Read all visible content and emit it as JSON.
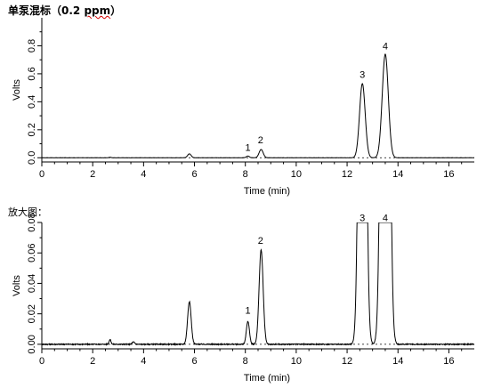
{
  "texts": {
    "top_heading_main": "单泵混标（0.2 ",
    "top_heading_unit": "ppm",
    "top_heading_close": "）",
    "bottom_heading": "放大图："
  },
  "chart_data": [
    {
      "type": "line",
      "xlabel": "Time (min)",
      "ylabel": "Volts",
      "xlim": [
        0,
        17
      ],
      "ylim": [
        -0.03,
        1.0
      ],
      "xticks": [
        0,
        2,
        4,
        6,
        8,
        10,
        12,
        14,
        16
      ],
      "yticks": [
        0.0,
        0.2,
        0.4,
        0.6,
        0.8
      ],
      "yticklabels": [
        "0.0",
        "0.2",
        "0.4",
        "0.6",
        "0.8"
      ],
      "baseline": 0.0,
      "noise": 0.001,
      "series": [
        {
          "values_description_free": true,
          "peaks": [
            {
              "x": 2.68,
              "y": 0.004,
              "w": 0.04
            },
            {
              "x": 5.8,
              "y": 0.028,
              "w": 0.07
            },
            {
              "x": 8.1,
              "y": 0.012,
              "w": 0.06
            },
            {
              "x": 8.62,
              "y": 0.059,
              "w": 0.08
            },
            {
              "x": 12.6,
              "y": 0.53,
              "w": 0.11
            },
            {
              "x": 13.5,
              "y": 0.74,
              "w": 0.12
            }
          ]
        }
      ],
      "annotations": [
        {
          "text": "1",
          "x": 8.1,
          "y": 0.05
        },
        {
          "text": "2",
          "x": 8.6,
          "y": 0.105
        },
        {
          "text": "3",
          "x": 12.6,
          "y": 0.57
        },
        {
          "text": "4",
          "x": 13.5,
          "y": 0.775
        }
      ],
      "grid": false
    },
    {
      "type": "line",
      "xlabel": "Time (min)",
      "ylabel": "Volts",
      "xlim": [
        0,
        17
      ],
      "ylim": [
        -0.003,
        0.08
      ],
      "xticks": [
        0,
        2,
        4,
        6,
        8,
        10,
        12,
        14,
        16
      ],
      "yticks": [
        0.0,
        0.02,
        0.04,
        0.06,
        0.08
      ],
      "yticklabels": [
        "0.00",
        "0.02",
        "0.04",
        "0.06",
        "0.08"
      ],
      "baseline": 0.0,
      "noise": 0.0006,
      "series": [
        {
          "peaks": [
            {
              "x": 2.68,
              "y": 0.003,
              "w": 0.04
            },
            {
              "x": 3.6,
              "y": 0.0015,
              "w": 0.05
            },
            {
              "x": 5.8,
              "y": 0.028,
              "w": 0.07
            },
            {
              "x": 8.1,
              "y": 0.015,
              "w": 0.06
            },
            {
              "x": 8.62,
              "y": 0.062,
              "w": 0.08
            },
            {
              "x": 12.6,
              "y": 0.53,
              "w": 0.11
            },
            {
              "x": 13.5,
              "y": 0.74,
              "w": 0.12
            }
          ]
        }
      ],
      "annotations": [
        {
          "text": "1",
          "x": 8.1,
          "y": 0.02
        },
        {
          "text": "2",
          "x": 8.6,
          "y": 0.066
        },
        {
          "text": "3",
          "x": 12.6,
          "y": 0.081
        },
        {
          "text": "4",
          "x": 13.5,
          "y": 0.081
        }
      ],
      "grid": false
    }
  ]
}
